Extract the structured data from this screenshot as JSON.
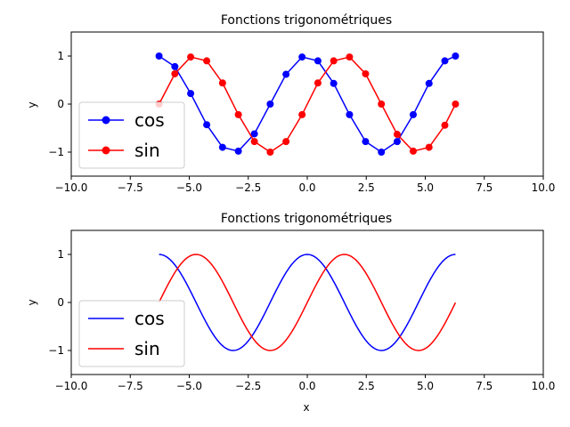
{
  "chart_data": [
    {
      "type": "line",
      "title": "Fonctions trigonométriques",
      "xlabel": "",
      "ylabel": "y",
      "xlim": [
        -10,
        10
      ],
      "ylim": [
        -1.5,
        1.5
      ],
      "xticks": [
        "−10.0",
        "−7.5",
        "−5.0",
        "−2.5",
        "0.0",
        "2.5",
        "5.0",
        "7.5",
        "10.0"
      ],
      "yticks": [
        "−1",
        "0",
        "1"
      ],
      "grid": false,
      "legend": "lower-left",
      "markers": true,
      "x": [
        -6.28,
        -5.61,
        -4.94,
        -4.26,
        -3.59,
        -2.92,
        -2.24,
        -1.57,
        -0.9,
        -0.22,
        0.45,
        1.12,
        1.79,
        2.47,
        3.14,
        3.81,
        4.49,
        5.16,
        5.83,
        6.28
      ],
      "series": [
        {
          "name": "cos",
          "color": "#0000ff",
          "values": [
            1.0,
            0.78,
            0.22,
            -0.43,
            -0.9,
            -0.98,
            -0.62,
            0.0,
            0.62,
            0.98,
            0.9,
            0.43,
            -0.22,
            -0.78,
            -1.0,
            -0.78,
            -0.22,
            0.43,
            0.9,
            1.0
          ]
        },
        {
          "name": "sin",
          "color": "#ff0000",
          "values": [
            0.0,
            0.63,
            0.98,
            0.9,
            0.44,
            -0.22,
            -0.78,
            -1.0,
            -0.78,
            -0.22,
            0.44,
            0.9,
            0.98,
            0.63,
            0.0,
            -0.63,
            -0.98,
            -0.9,
            -0.44,
            0.0
          ]
        }
      ]
    },
    {
      "type": "line",
      "title": "Fonctions trigonométriques",
      "xlabel": "x",
      "ylabel": "y",
      "xlim": [
        -10,
        10
      ],
      "ylim": [
        -1.5,
        1.5
      ],
      "xticks": [
        "−10.0",
        "−7.5",
        "−5.0",
        "−2.5",
        "0.0",
        "2.5",
        "5.0",
        "7.5",
        "10.0"
      ],
      "yticks": [
        "−1",
        "0",
        "1"
      ],
      "grid": false,
      "legend": "lower-left",
      "markers": false,
      "x_range": [
        -6.28,
        6.28
      ],
      "series": [
        {
          "name": "cos",
          "color": "#0000ff",
          "function": "cos"
        },
        {
          "name": "sin",
          "color": "#ff0000",
          "function": "sin"
        }
      ]
    }
  ]
}
